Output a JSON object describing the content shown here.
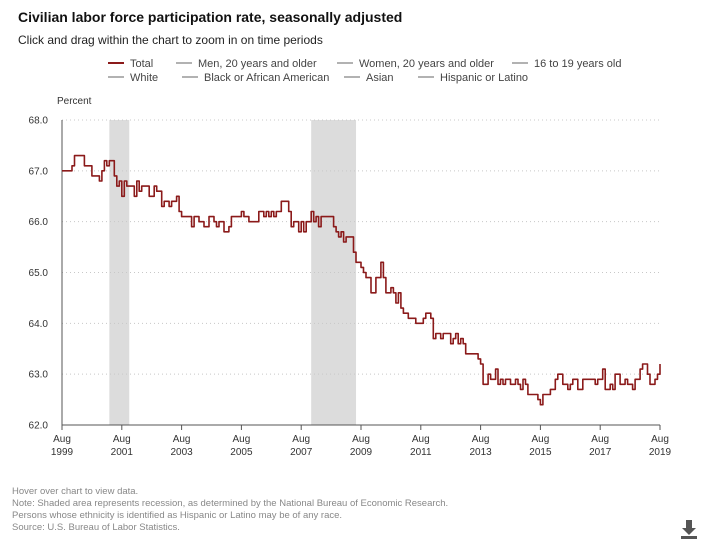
{
  "header": {
    "title": "Civilian labor force participation rate, seasonally adjusted",
    "subtitle": "Click and drag within the chart to zoom in on time periods"
  },
  "notes": {
    "hover": "Hover over chart to view data.",
    "recession": "Note: Shaded area represents recession, as determined by the National Bureau of Economic Research.",
    "ethnicity": "Persons whose ethnicity is identified as Hispanic or Latino may be of any race.",
    "source": "Source: U.S. Bureau of Labor Statistics."
  },
  "toolbar": {
    "download_icon": "download-icon"
  },
  "chart_data": {
    "type": "line",
    "ylabel": "Percent",
    "ylim": [
      62.0,
      68.0
    ],
    "yticks": [
      "62.0",
      "63.0",
      "64.0",
      "65.0",
      "66.0",
      "67.0",
      "68.0"
    ],
    "xlim": [
      "1999-08",
      "2019-08"
    ],
    "xticks": [
      {
        "month": "Aug",
        "year": "1999",
        "date": "1999-08"
      },
      {
        "month": "Aug",
        "year": "2001",
        "date": "2001-08"
      },
      {
        "month": "Aug",
        "year": "2003",
        "date": "2003-08"
      },
      {
        "month": "Aug",
        "year": "2005",
        "date": "2005-08"
      },
      {
        "month": "Aug",
        "year": "2007",
        "date": "2007-08"
      },
      {
        "month": "Aug",
        "year": "2009",
        "date": "2009-08"
      },
      {
        "month": "Aug",
        "year": "2011",
        "date": "2011-08"
      },
      {
        "month": "Aug",
        "year": "2013",
        "date": "2013-08"
      },
      {
        "month": "Aug",
        "year": "2015",
        "date": "2015-08"
      },
      {
        "month": "Aug",
        "year": "2017",
        "date": "2017-08"
      },
      {
        "month": "Aug",
        "year": "2019",
        "date": "2019-08"
      }
    ],
    "grid": true,
    "legend": [
      {
        "name": "Total",
        "color": "#8b1a1a",
        "active": true
      },
      {
        "name": "Men, 20 years and older",
        "color": "#999999",
        "active": false
      },
      {
        "name": "Women, 20 years and older",
        "color": "#999999",
        "active": false
      },
      {
        "name": "16 to 19 years old",
        "color": "#999999",
        "active": false
      },
      {
        "name": "White",
        "color": "#999999",
        "active": false
      },
      {
        "name": "Black or African American",
        "color": "#999999",
        "active": false
      },
      {
        "name": "Asian",
        "color": "#999999",
        "active": false
      },
      {
        "name": "Hispanic or Latino",
        "color": "#999999",
        "active": false
      }
    ],
    "legend_position": "top",
    "recessions": [
      {
        "start": "2001-03",
        "end": "2001-11"
      },
      {
        "start": "2007-12",
        "end": "2009-06"
      }
    ],
    "series": [
      {
        "name": "Total",
        "color": "#8b1a1a",
        "points": [
          [
            "1999-08",
            67.0
          ],
          [
            "1999-10",
            67.0
          ],
          [
            "1999-12",
            67.1
          ],
          [
            "2000-01",
            67.3
          ],
          [
            "2000-04",
            67.3
          ],
          [
            "2000-05",
            67.1
          ],
          [
            "2000-07",
            67.1
          ],
          [
            "2000-08",
            66.9
          ],
          [
            "2000-10",
            66.9
          ],
          [
            "2000-11",
            66.8
          ],
          [
            "2000-12",
            67.0
          ],
          [
            "2001-01",
            67.2
          ],
          [
            "2001-02",
            67.1
          ],
          [
            "2001-03",
            67.2
          ],
          [
            "2001-05",
            66.9
          ],
          [
            "2001-06",
            66.7
          ],
          [
            "2001-07",
            66.8
          ],
          [
            "2001-08",
            66.5
          ],
          [
            "2001-09",
            66.8
          ],
          [
            "2001-10",
            66.7
          ],
          [
            "2001-11",
            66.7
          ],
          [
            "2001-12",
            66.7
          ],
          [
            "2002-01",
            66.5
          ],
          [
            "2002-02",
            66.8
          ],
          [
            "2002-03",
            66.6
          ],
          [
            "2002-04",
            66.7
          ],
          [
            "2002-05",
            66.7
          ],
          [
            "2002-07",
            66.5
          ],
          [
            "2002-09",
            66.7
          ],
          [
            "2002-10",
            66.6
          ],
          [
            "2002-12",
            66.3
          ],
          [
            "2003-01",
            66.4
          ],
          [
            "2003-03",
            66.3
          ],
          [
            "2003-04",
            66.4
          ],
          [
            "2003-06",
            66.5
          ],
          [
            "2003-07",
            66.2
          ],
          [
            "2003-08",
            66.1
          ],
          [
            "2003-11",
            66.1
          ],
          [
            "2003-12",
            65.9
          ],
          [
            "2004-01",
            66.1
          ],
          [
            "2004-03",
            66.0
          ],
          [
            "2004-04",
            66.0
          ],
          [
            "2004-05",
            65.9
          ],
          [
            "2004-07",
            66.1
          ],
          [
            "2004-09",
            66.0
          ],
          [
            "2004-10",
            65.9
          ],
          [
            "2004-11",
            66.0
          ],
          [
            "2005-01",
            65.8
          ],
          [
            "2005-03",
            65.9
          ],
          [
            "2005-04",
            66.1
          ],
          [
            "2005-07",
            66.1
          ],
          [
            "2005-08",
            66.2
          ],
          [
            "2005-09",
            66.1
          ],
          [
            "2005-11",
            66.0
          ],
          [
            "2006-01",
            66.0
          ],
          [
            "2006-03",
            66.2
          ],
          [
            "2006-05",
            66.1
          ],
          [
            "2006-06",
            66.2
          ],
          [
            "2006-07",
            66.1
          ],
          [
            "2006-08",
            66.2
          ],
          [
            "2006-09",
            66.1
          ],
          [
            "2006-10",
            66.2
          ],
          [
            "2006-12",
            66.4
          ],
          [
            "2007-01",
            66.4
          ],
          [
            "2007-03",
            66.2
          ],
          [
            "2007-04",
            65.9
          ],
          [
            "2007-05",
            66.0
          ],
          [
            "2007-06",
            66.0
          ],
          [
            "2007-07",
            65.8
          ],
          [
            "2007-08",
            66.0
          ],
          [
            "2007-09",
            65.8
          ],
          [
            "2007-10",
            66.0
          ],
          [
            "2007-11",
            66.0
          ],
          [
            "2007-12",
            66.2
          ],
          [
            "2008-01",
            66.0
          ],
          [
            "2008-02",
            66.1
          ],
          [
            "2008-03",
            65.9
          ],
          [
            "2008-04",
            66.1
          ],
          [
            "2008-07",
            66.1
          ],
          [
            "2008-09",
            65.9
          ],
          [
            "2008-10",
            65.8
          ],
          [
            "2008-11",
            65.7
          ],
          [
            "2008-12",
            65.8
          ],
          [
            "2009-01",
            65.6
          ],
          [
            "2009-02",
            65.7
          ],
          [
            "2009-04",
            65.7
          ],
          [
            "2009-05",
            65.4
          ],
          [
            "2009-06",
            65.2
          ],
          [
            "2009-08",
            65.1
          ],
          [
            "2009-09",
            65.0
          ],
          [
            "2009-10",
            64.9
          ],
          [
            "2009-12",
            64.6
          ],
          [
            "2010-02",
            64.9
          ],
          [
            "2010-03",
            64.9
          ],
          [
            "2010-04",
            65.2
          ],
          [
            "2010-05",
            64.9
          ],
          [
            "2010-06",
            64.6
          ],
          [
            "2010-07",
            64.6
          ],
          [
            "2010-08",
            64.7
          ],
          [
            "2010-09",
            64.6
          ],
          [
            "2010-10",
            64.4
          ],
          [
            "2010-11",
            64.6
          ],
          [
            "2010-12",
            64.3
          ],
          [
            "2011-01",
            64.2
          ],
          [
            "2011-03",
            64.1
          ],
          [
            "2011-05",
            64.1
          ],
          [
            "2011-06",
            64.0
          ],
          [
            "2011-08",
            64.0
          ],
          [
            "2011-09",
            64.1
          ],
          [
            "2011-10",
            64.2
          ],
          [
            "2011-12",
            64.1
          ],
          [
            "2012-01",
            63.7
          ],
          [
            "2012-02",
            63.8
          ],
          [
            "2012-04",
            63.7
          ],
          [
            "2012-05",
            63.8
          ],
          [
            "2012-06",
            63.8
          ],
          [
            "2012-08",
            63.6
          ],
          [
            "2012-09",
            63.7
          ],
          [
            "2012-10",
            63.8
          ],
          [
            "2012-11",
            63.6
          ],
          [
            "2012-12",
            63.7
          ],
          [
            "2013-01",
            63.6
          ],
          [
            "2013-02",
            63.4
          ],
          [
            "2013-04",
            63.4
          ],
          [
            "2013-06",
            63.4
          ],
          [
            "2013-07",
            63.3
          ],
          [
            "2013-08",
            63.2
          ],
          [
            "2013-09",
            62.8
          ],
          [
            "2013-11",
            63.0
          ],
          [
            "2013-12",
            62.9
          ],
          [
            "2014-01",
            62.9
          ],
          [
            "2014-02",
            63.1
          ],
          [
            "2014-03",
            62.8
          ],
          [
            "2014-04",
            62.9
          ],
          [
            "2014-05",
            62.8
          ],
          [
            "2014-06",
            62.9
          ],
          [
            "2014-07",
            62.9
          ],
          [
            "2014-08",
            62.8
          ],
          [
            "2014-10",
            62.9
          ],
          [
            "2014-11",
            62.8
          ],
          [
            "2014-12",
            62.7
          ],
          [
            "2015-01",
            62.9
          ],
          [
            "2015-02",
            62.8
          ],
          [
            "2015-03",
            62.6
          ],
          [
            "2015-05",
            62.6
          ],
          [
            "2015-06",
            62.6
          ],
          [
            "2015-07",
            62.5
          ],
          [
            "2015-08",
            62.4
          ],
          [
            "2015-09",
            62.6
          ],
          [
            "2015-10",
            62.6
          ],
          [
            "2015-12",
            62.7
          ],
          [
            "2016-01",
            62.7
          ],
          [
            "2016-02",
            62.9
          ],
          [
            "2016-03",
            63.0
          ],
          [
            "2016-05",
            62.8
          ],
          [
            "2016-07",
            62.7
          ],
          [
            "2016-08",
            62.8
          ],
          [
            "2016-09",
            62.9
          ],
          [
            "2016-11",
            62.7
          ],
          [
            "2016-12",
            62.7
          ],
          [
            "2017-01",
            62.9
          ],
          [
            "2017-03",
            62.9
          ],
          [
            "2017-05",
            62.9
          ],
          [
            "2017-06",
            62.8
          ],
          [
            "2017-07",
            62.9
          ],
          [
            "2017-08",
            62.9
          ],
          [
            "2017-09",
            63.1
          ],
          [
            "2017-10",
            62.7
          ],
          [
            "2017-11",
            62.7
          ],
          [
            "2017-12",
            62.8
          ],
          [
            "2018-01",
            62.7
          ],
          [
            "2018-02",
            63.0
          ],
          [
            "2018-04",
            62.8
          ],
          [
            "2018-05",
            62.8
          ],
          [
            "2018-06",
            62.9
          ],
          [
            "2018-07",
            62.8
          ],
          [
            "2018-09",
            62.7
          ],
          [
            "2018-10",
            62.9
          ],
          [
            "2018-11",
            62.9
          ],
          [
            "2018-12",
            63.1
          ],
          [
            "2019-01",
            63.2
          ],
          [
            "2019-02",
            63.2
          ],
          [
            "2019-03",
            63.0
          ],
          [
            "2019-04",
            62.8
          ],
          [
            "2019-06",
            62.9
          ],
          [
            "2019-07",
            63.0
          ],
          [
            "2019-08",
            63.2
          ]
        ]
      }
    ]
  }
}
